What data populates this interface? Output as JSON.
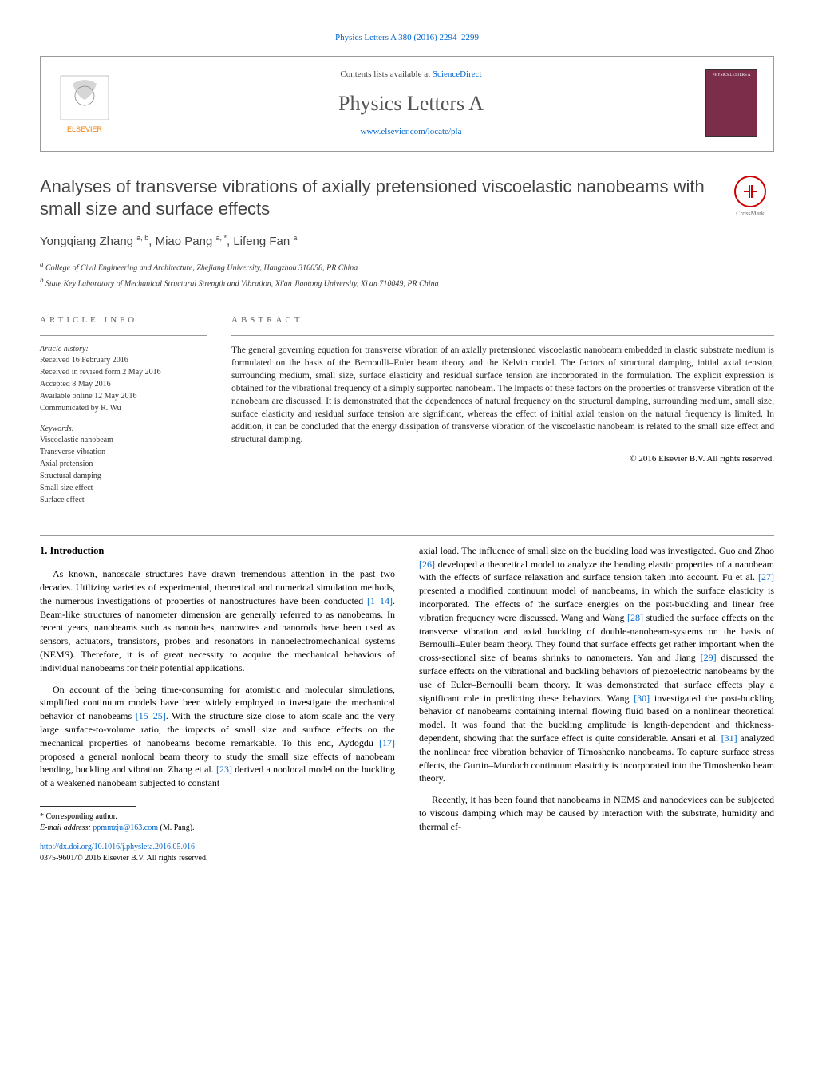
{
  "header": {
    "reference": "Physics Letters A 380 (2016) 2294–2299",
    "contents_line_prefix": "Contents lists available at ",
    "contents_link": "ScienceDirect",
    "journal_name": "Physics Letters A",
    "journal_url": "www.elsevier.com/locate/pla",
    "elsevier_label": "ELSEVIER",
    "cover_label": "PHYSICS LETTERS A"
  },
  "title": "Analyses of transverse vibrations of axially pretensioned viscoelastic nanobeams with small size and surface effects",
  "crossmark_label": "CrossMark",
  "authors_html": "Yongqiang Zhang <span class='sup'>a, b</span>, Miao Pang <span class='sup'>a, *</span>, Lifeng Fan <span class='sup'>a</span>",
  "affiliations": [
    {
      "sup": "a",
      "text": "College of Civil Engineering and Architecture, Zhejiang University, Hangzhou 310058, PR China"
    },
    {
      "sup": "b",
      "text": "State Key Laboratory of Mechanical Structural Strength and Vibration, Xi'an Jiaotong University, Xi'an 710049, PR China"
    }
  ],
  "article_info": {
    "heading": "ARTICLE INFO",
    "history_label": "Article history:",
    "history": [
      "Received 16 February 2016",
      "Received in revised form 2 May 2016",
      "Accepted 8 May 2016",
      "Available online 12 May 2016",
      "Communicated by R. Wu"
    ],
    "keywords_label": "Keywords:",
    "keywords": [
      "Viscoelastic nanobeam",
      "Transverse vibration",
      "Axial pretension",
      "Structural damping",
      "Small size effect",
      "Surface effect"
    ]
  },
  "abstract": {
    "heading": "ABSTRACT",
    "text": "The general governing equation for transverse vibration of an axially pretensioned viscoelastic nanobeam embedded in elastic substrate medium is formulated on the basis of the Bernoulli–Euler beam theory and the Kelvin model. The factors of structural damping, initial axial tension, surrounding medium, small size, surface elasticity and residual surface tension are incorporated in the formulation. The explicit expression is obtained for the vibrational frequency of a simply supported nanobeam. The impacts of these factors on the properties of transverse vibration of the nanobeam are discussed. It is demonstrated that the dependences of natural frequency on the structural damping, surrounding medium, small size, surface elasticity and residual surface tension are significant, whereas the effect of initial axial tension on the natural frequency is limited. In addition, it can be concluded that the energy dissipation of transverse vibration of the viscoelastic nanobeam is related to the small size effect and structural damping.",
    "copyright": "© 2016 Elsevier B.V. All rights reserved."
  },
  "body": {
    "section_heading": "1. Introduction",
    "col1_paras": [
      "As known, nanoscale structures have drawn tremendous attention in the past two decades. Utilizing varieties of experimental, theoretical and numerical simulation methods, the numerous investigations of properties of nanostructures have been conducted <a class='ref-link'>[1–14]</a>. Beam-like structures of nanometer dimension are generally referred to as nanobeams. In recent years, nanobeams such as nanotubes, nanowires and nanorods have been used as sensors, actuators, transistors, probes and resonators in nanoelectromechanical systems (NEMS). Therefore, it is of great necessity to acquire the mechanical behaviors of individual nanobeams for their potential applications.",
      "On account of the being time-consuming for atomistic and molecular simulations, simplified continuum models have been widely employed to investigate the mechanical behavior of nanobeams <a class='ref-link'>[15–25]</a>. With the structure size close to atom scale and the very large surface-to-volume ratio, the impacts of small size and surface effects on the mechanical properties of nanobeams become remarkable. To this end, Aydogdu <a class='ref-link'>[17]</a> proposed a general nonlocal beam theory to study the small size effects of nanobeam bending, buckling and vibration. Zhang et al. <a class='ref-link'>[23]</a> derived a nonlocal model on the buckling of a weakened nanobeam subjected to constant"
    ],
    "col2_paras": [
      "axial load. The influence of small size on the buckling load was investigated. Guo and Zhao <a class='ref-link'>[26]</a> developed a theoretical model to analyze the bending elastic properties of a nanobeam with the effects of surface relaxation and surface tension taken into account. Fu et al. <a class='ref-link'>[27]</a> presented a modified continuum model of nanobeams, in which the surface elasticity is incorporated. The effects of the surface energies on the post-buckling and linear free vibration frequency were discussed. Wang and Wang <a class='ref-link'>[28]</a> studied the surface effects on the transverse vibration and axial buckling of double-nanobeam-systems on the basis of Bernoulli–Euler beam theory. They found that surface effects get rather important when the cross-sectional size of beams shrinks to nanometers. Yan and Jiang <a class='ref-link'>[29]</a> discussed the surface effects on the vibrational and buckling behaviors of piezoelectric nanobeams by the use of Euler–Bernoulli beam theory. It was demonstrated that surface effects play a significant role in predicting these behaviors. Wang <a class='ref-link'>[30]</a> investigated the post-buckling behavior of nanobeams containing internal flowing fluid based on a nonlinear theoretical model. It was found that the buckling amplitude is length-dependent and thickness-dependent, showing that the surface effect is quite considerable. Ansari et al. <a class='ref-link'>[31]</a> analyzed the nonlinear free vibration behavior of Timoshenko nanobeams. To capture surface stress effects, the Gurtin–Murdoch continuum elasticity is incorporated into the Timoshenko beam theory.",
      "Recently, it has been found that nanobeams in NEMS and nanodevices can be subjected to viscous damping which may be caused by interaction with the substrate, humidity and thermal ef-"
    ]
  },
  "footnote": {
    "corr_label": "* Corresponding author.",
    "email_label": "E-mail address: ",
    "email": "ppmmzju@163.com",
    "email_suffix": " (M. Pang)."
  },
  "doi": {
    "url": "http://dx.doi.org/10.1016/j.physleta.2016.05.016",
    "issn_line": "0375-9601/© 2016 Elsevier B.V. All rights reserved."
  },
  "colors": {
    "link": "#0066cc",
    "text": "#000000",
    "heading": "#666666",
    "cover_bg": "#7b2d4a",
    "elsevier_orange": "#ef7c00"
  }
}
